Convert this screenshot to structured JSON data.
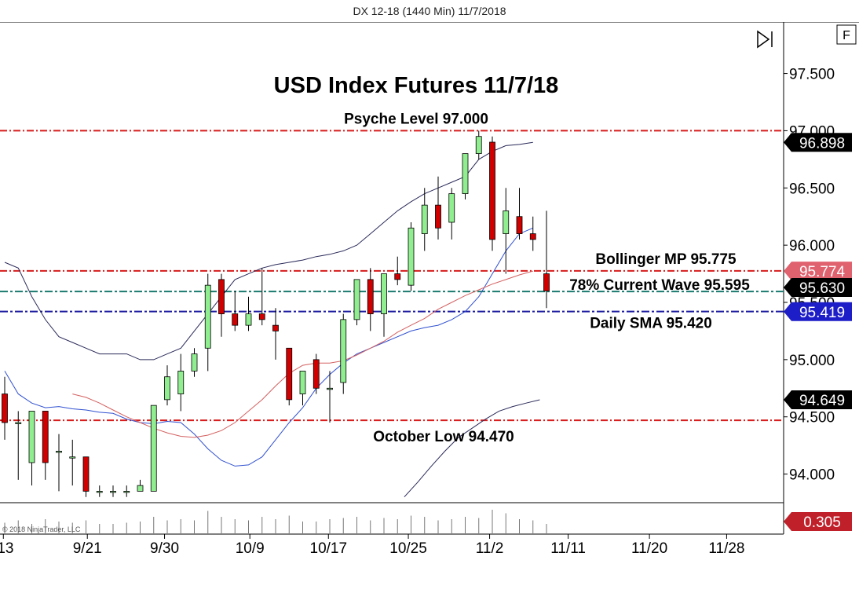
{
  "header": {
    "caption": "DX 12-18 (1440 Min)  11/7/2018"
  },
  "toolbar": {
    "f_button_label": "F"
  },
  "watermark": "© 2018 NinjaTrader, LLC",
  "chart_data": {
    "type": "candlestick",
    "title": "USD Index Futures 11/7/18",
    "ylim": [
      93.75,
      97.95
    ],
    "price_ticks": [
      {
        "value": 94.0,
        "label": "94.000"
      },
      {
        "value": 94.5,
        "label": "94.500"
      },
      {
        "value": 95.0,
        "label": "95.000"
      },
      {
        "value": 95.5,
        "label": "95.500"
      },
      {
        "value": 96.0,
        "label": "96.000"
      },
      {
        "value": 96.5,
        "label": "96.500"
      },
      {
        "value": 97.0,
        "label": "97.000"
      },
      {
        "value": 97.5,
        "label": "97.500"
      }
    ],
    "date_ticks": [
      {
        "bar": -0.1,
        "label": "/13"
      },
      {
        "bar": 6.1,
        "label": "9/21"
      },
      {
        "bar": 11.8,
        "label": "9/30"
      },
      {
        "bar": 18.1,
        "label": "10/9"
      },
      {
        "bar": 23.9,
        "label": "10/17"
      },
      {
        "bar": 29.8,
        "label": "10/25"
      },
      {
        "bar": 35.8,
        "label": "11/2"
      },
      {
        "bar": 41.6,
        "label": "11/11"
      },
      {
        "bar": 47.6,
        "label": "11/20"
      },
      {
        "bar": 53.3,
        "label": "11/28"
      }
    ],
    "candles": [
      {
        "o": 94.7,
        "h": 94.85,
        "l": 94.3,
        "c": 94.45
      },
      {
        "o": 94.45,
        "h": 94.55,
        "l": 93.95,
        "c": 94.45
      },
      {
        "o": 94.1,
        "h": 94.55,
        "l": 93.9,
        "c": 94.55
      },
      {
        "o": 94.55,
        "h": 94.55,
        "l": 93.95,
        "c": 94.1
      },
      {
        "o": 94.2,
        "h": 94.35,
        "l": 93.85,
        "c": 94.2
      },
      {
        "o": 94.15,
        "h": 94.3,
        "l": 93.9,
        "c": 94.15
      },
      {
        "o": 94.15,
        "h": 94.15,
        "l": 93.8,
        "c": 93.85
      },
      {
        "o": 93.85,
        "h": 93.9,
        "l": 93.8,
        "c": 93.85
      },
      {
        "o": 93.85,
        "h": 93.9,
        "l": 93.8,
        "c": 93.85
      },
      {
        "o": 93.85,
        "h": 93.9,
        "l": 93.8,
        "c": 93.85
      },
      {
        "o": 93.85,
        "h": 93.95,
        "l": 93.85,
        "c": 93.9
      },
      {
        "o": 93.85,
        "h": 94.6,
        "l": 93.85,
        "c": 94.6
      },
      {
        "o": 94.65,
        "h": 94.95,
        "l": 94.6,
        "c": 94.85
      },
      {
        "o": 94.7,
        "h": 95.05,
        "l": 94.55,
        "c": 94.9
      },
      {
        "o": 94.9,
        "h": 95.1,
        "l": 94.85,
        "c": 95.05
      },
      {
        "o": 95.1,
        "h": 95.75,
        "l": 94.9,
        "c": 95.65
      },
      {
        "o": 95.7,
        "h": 95.75,
        "l": 95.2,
        "c": 95.4
      },
      {
        "o": 95.4,
        "h": 95.6,
        "l": 95.25,
        "c": 95.3
      },
      {
        "o": 95.3,
        "h": 95.55,
        "l": 95.25,
        "c": 95.4
      },
      {
        "o": 95.4,
        "h": 95.8,
        "l": 95.3,
        "c": 95.35
      },
      {
        "o": 95.3,
        "h": 95.45,
        "l": 95.0,
        "c": 95.25
      },
      {
        "o": 95.1,
        "h": 95.1,
        "l": 94.6,
        "c": 94.65
      },
      {
        "o": 94.7,
        "h": 94.9,
        "l": 94.6,
        "c": 94.9
      },
      {
        "o": 95.0,
        "h": 95.05,
        "l": 94.7,
        "c": 94.75
      },
      {
        "o": 94.75,
        "h": 94.9,
        "l": 94.45,
        "c": 94.75
      },
      {
        "o": 94.8,
        "h": 95.4,
        "l": 94.7,
        "c": 95.35
      },
      {
        "o": 95.35,
        "h": 95.7,
        "l": 95.3,
        "c": 95.7
      },
      {
        "o": 95.7,
        "h": 95.8,
        "l": 95.25,
        "c": 95.4
      },
      {
        "o": 95.4,
        "h": 95.75,
        "l": 95.2,
        "c": 95.75
      },
      {
        "o": 95.75,
        "h": 95.9,
        "l": 95.65,
        "c": 95.7
      },
      {
        "o": 95.65,
        "h": 96.2,
        "l": 95.6,
        "c": 96.15
      },
      {
        "o": 96.1,
        "h": 96.5,
        "l": 95.95,
        "c": 96.35
      },
      {
        "o": 96.35,
        "h": 96.6,
        "l": 96.05,
        "c": 96.15
      },
      {
        "o": 96.2,
        "h": 96.5,
        "l": 96.05,
        "c": 96.45
      },
      {
        "o": 96.45,
        "h": 96.8,
        "l": 96.4,
        "c": 96.8
      },
      {
        "o": 96.8,
        "h": 97.0,
        "l": 96.75,
        "c": 96.95
      },
      {
        "o": 96.9,
        "h": 96.95,
        "l": 95.95,
        "c": 96.05
      },
      {
        "o": 96.1,
        "h": 96.5,
        "l": 95.75,
        "c": 96.3
      },
      {
        "o": 96.25,
        "h": 96.5,
        "l": 96.05,
        "c": 96.1
      },
      {
        "o": 96.1,
        "h": 96.25,
        "l": 95.95,
        "c": 96.05
      },
      {
        "o": 95.75,
        "h": 96.3,
        "l": 95.45,
        "c": 95.6
      }
    ],
    "bollinger_upper": [
      95.85,
      95.8,
      95.55,
      95.35,
      95.2,
      95.15,
      95.1,
      95.05,
      95.05,
      95.05,
      95.0,
      95.0,
      95.05,
      95.1,
      95.25,
      95.4,
      95.55,
      95.7,
      95.75,
      95.8,
      95.83,
      95.85,
      95.87,
      95.9,
      95.92,
      95.95,
      96.0,
      96.1,
      96.2,
      96.3,
      96.38,
      96.45,
      96.5,
      96.55,
      96.6,
      96.75,
      96.82,
      96.87,
      96.88,
      96.898
    ],
    "bollinger_mid": [
      94.7,
      94.67,
      94.62,
      94.56,
      94.5,
      94.45,
      94.4,
      94.36,
      94.33,
      94.32,
      94.34,
      94.38,
      94.45,
      94.55,
      94.65,
      94.77,
      94.88,
      94.95,
      94.97,
      94.97,
      94.99,
      95.04,
      95.1,
      95.16,
      95.24,
      95.3,
      95.36,
      95.44,
      95.5,
      95.56,
      95.61,
      95.66,
      95.7,
      95.74,
      95.774
    ],
    "bollinger_lower": [
      93.8,
      93.93,
      94.07,
      94.2,
      94.32,
      94.4,
      94.48,
      94.55,
      94.59,
      94.62,
      94.649
    ],
    "sma_fast": [
      94.9,
      94.7,
      94.62,
      94.58,
      94.59,
      94.57,
      94.56,
      94.54,
      94.53,
      94.48,
      94.45,
      94.44,
      94.46,
      94.45,
      94.35,
      94.22,
      94.12,
      94.07,
      94.08,
      94.15,
      94.3,
      94.45,
      94.58,
      94.75,
      94.87,
      94.97,
      95.05,
      95.1,
      95.15,
      95.2,
      95.25,
      95.28,
      95.3,
      95.35,
      95.42,
      95.55,
      95.75,
      95.95,
      96.1,
      96.15
    ],
    "levels": [
      {
        "label": "Psyche Level 97.000",
        "value": 97.0,
        "color": "#d81b1b"
      },
      {
        "label": "Bollinger MP 95.775",
        "value": 95.775,
        "color": "#d81b1b"
      },
      {
        "label": "78% Current Wave 95.595",
        "value": 95.595,
        "color": "#1a7a6e"
      },
      {
        "label": "Daily SMA 95.420",
        "value": 95.42,
        "color": "#1a1aa0"
      },
      {
        "label": "October Low 94.470",
        "value": 94.47,
        "color": "#d81b1b"
      }
    ],
    "price_markers": [
      {
        "label": "96.898",
        "value": 96.898,
        "bg": "#000000",
        "fg": "#ffffff"
      },
      {
        "label": "95.774",
        "value": 95.774,
        "bg": "#e0626f",
        "fg": "#ffffff"
      },
      {
        "label": "95.630",
        "value": 95.63,
        "bg": "#000000",
        "fg": "#ffffff"
      },
      {
        "label": "95.419",
        "value": 95.419,
        "bg": "#1e1ec8",
        "fg": "#ffffff"
      },
      {
        "label": "94.649",
        "value": 94.649,
        "bg": "#000000",
        "fg": "#ffffff"
      }
    ],
    "volume": {
      "label": "0.305",
      "label_bg": "#c0202a",
      "heights": [
        0.45,
        0.55,
        0.4,
        0.6,
        0.5,
        0.45,
        0.55,
        0.4,
        0.4,
        0.45,
        0.5,
        0.7,
        0.55,
        0.6,
        0.55,
        0.95,
        0.7,
        0.6,
        0.55,
        0.7,
        0.6,
        0.75,
        0.5,
        0.5,
        0.6,
        0.65,
        0.7,
        0.55,
        0.65,
        0.6,
        0.75,
        0.7,
        0.55,
        0.6,
        0.7,
        0.65,
        1.0,
        0.85,
        0.6,
        0.55,
        0.4
      ]
    },
    "colors": {
      "up": "#90ee90",
      "down": "#d00000",
      "upper_band": "#2a2a5a",
      "mid_band": "#d46060",
      "lower_band": "#1a1ab0",
      "sma": "#3050d0"
    }
  }
}
